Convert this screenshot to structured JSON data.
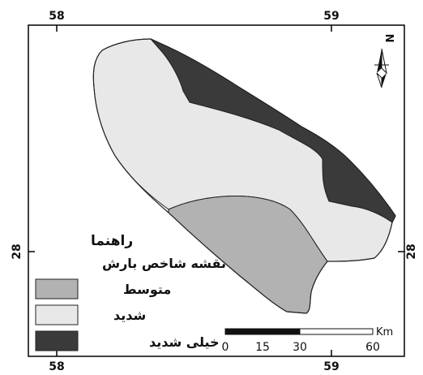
{
  "map": {
    "grid_labels": {
      "top_left": "58",
      "top_right": "59",
      "bottom_left": "58",
      "bottom_right": "59",
      "left": "28",
      "right": "28"
    },
    "north_arrow": {
      "label": "N"
    },
    "legend": {
      "title": "راهنما",
      "subtitle": "نقشه شاخص بارش",
      "items": [
        {
          "label": "متوسط",
          "color": "#b2b2b2"
        },
        {
          "label": "شدید",
          "color": "#e8e8e8"
        },
        {
          "label": "خیلی شدید",
          "color": "#3a3a3a"
        }
      ]
    },
    "scale_bar": {
      "unit": "Km",
      "ticks": [
        "0",
        "15",
        "30",
        "60"
      ]
    },
    "colors": {
      "frame": "#000000",
      "outline": "#222222"
    }
  }
}
